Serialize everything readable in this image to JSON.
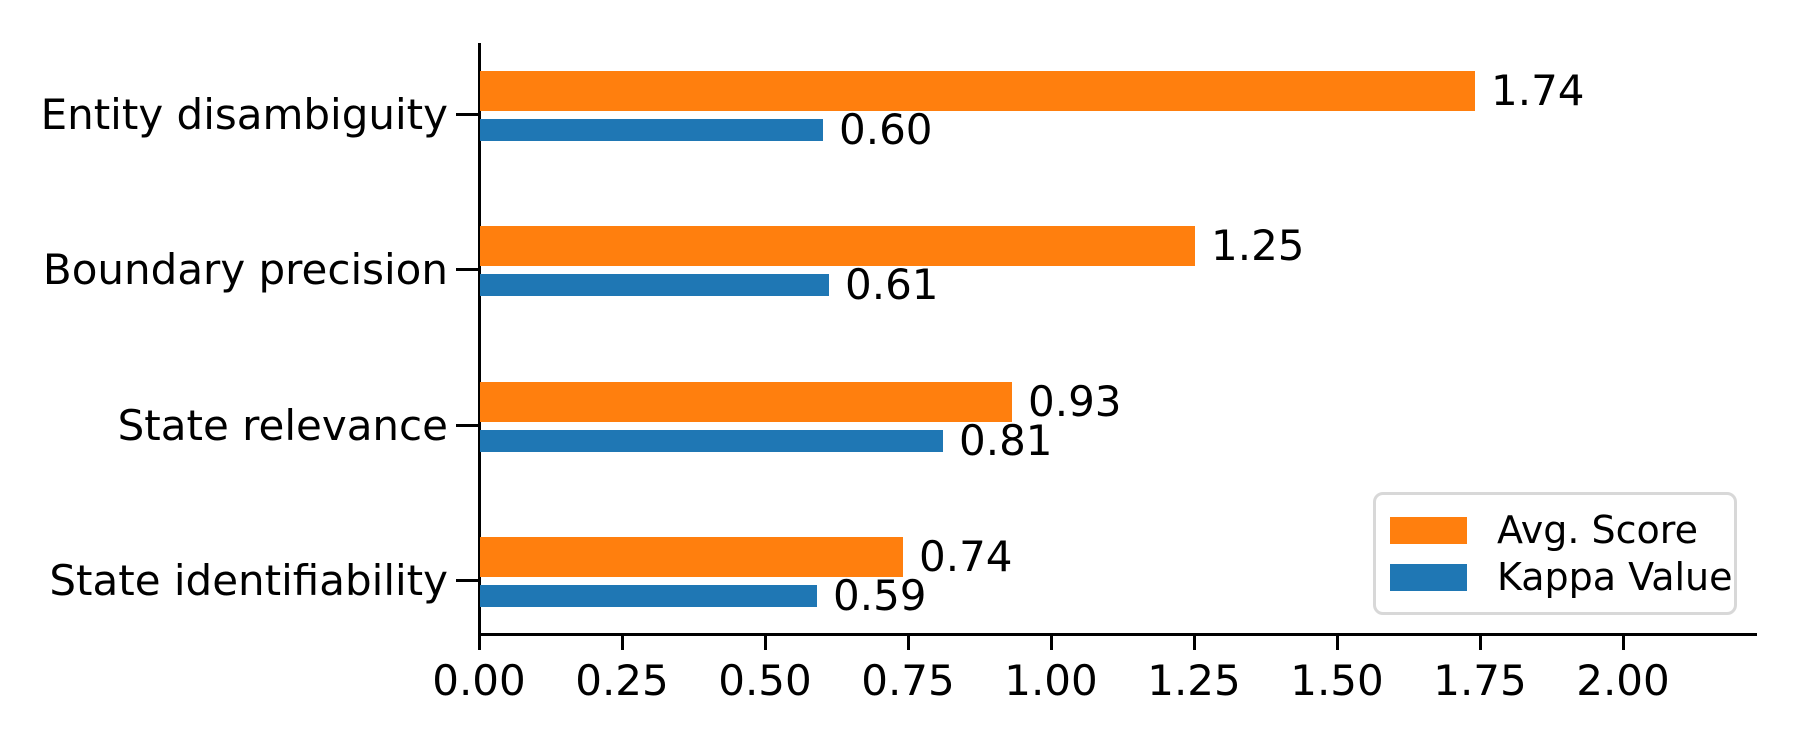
{
  "chart_data": {
    "type": "bar",
    "orientation": "horizontal",
    "title": "",
    "xlabel": "",
    "ylabel": "",
    "grid": false,
    "legend_position": "lower right",
    "categories": [
      "Entity disambiguity",
      "Boundary precision",
      "State relevance",
      "State identifiability"
    ],
    "series": [
      {
        "name": "Avg. Score",
        "color": "#ff7f0e",
        "values": [
          1.74,
          1.25,
          0.93,
          0.74
        ],
        "value_labels": [
          "1.74",
          "1.25",
          "0.93",
          "0.74"
        ]
      },
      {
        "name": "Kappa Value",
        "color": "#1f77b4",
        "values": [
          0.6,
          0.61,
          0.81,
          0.59
        ],
        "value_labels": [
          "0.60",
          "0.61",
          "0.81",
          "0.59"
        ]
      }
    ],
    "xlim": [
      0.0,
      2.23
    ],
    "x_ticks": [
      0.0,
      0.25,
      0.5,
      0.75,
      1.0,
      1.25,
      1.5,
      1.75,
      2.0
    ],
    "x_tick_labels": [
      "0.00",
      "0.25",
      "0.50",
      "0.75",
      "1.00",
      "1.25",
      "1.50",
      "1.75",
      "2.00"
    ],
    "axis_color": "#000000",
    "background_color": "#ffffff"
  }
}
